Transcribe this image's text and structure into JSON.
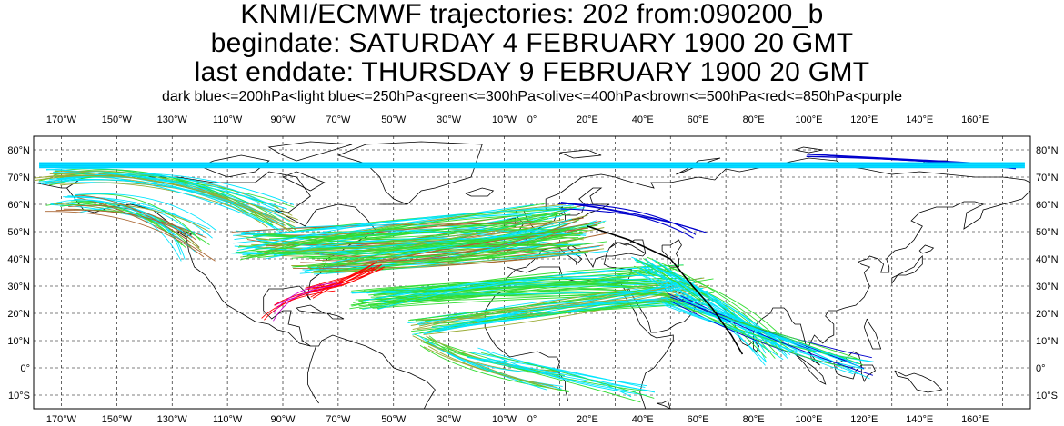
{
  "title": {
    "line1": "KNMI/ECMWF trajectories:  202 from:090200_b",
    "line2": "begindate:  SATURDAY   4 FEBRUARY  1900 20 GMT",
    "line3": "last enddate:  THURSDAY   9 FEBRUARY  1900 20 GMT"
  },
  "legend": "dark blue<=200hPa<light blue<=250hPa<green<=300hPa<olive<=400hPa<brown<=500hPa<red<=850hPa<purple",
  "axes": {
    "lon_labels": [
      "170°W",
      "150°W",
      "130°W",
      "110°W",
      "90°W",
      "70°W",
      "50°W",
      "30°W",
      "10°W",
      "0°",
      "20°E",
      "40°E",
      "60°E",
      "80°E",
      "100°E",
      "120°E",
      "140°E",
      "160°E"
    ],
    "lat_labels": [
      "80°N",
      "70°N",
      "60°N",
      "50°N",
      "40°N",
      "30°N",
      "20°N",
      "10°N",
      "0°",
      "10°S"
    ],
    "lon_range": [
      -180,
      180
    ],
    "lat_range": [
      -15,
      85
    ],
    "grid": true
  },
  "colors": {
    "dark_blue": "#0000cc",
    "light_blue": "#00e5ff",
    "green": "#33dd33",
    "olive": "#99aa33",
    "brown": "#aa6633",
    "red": "#ff0000",
    "purple": "#cc00cc",
    "coast": "#000000",
    "grid": "#000000"
  }
}
